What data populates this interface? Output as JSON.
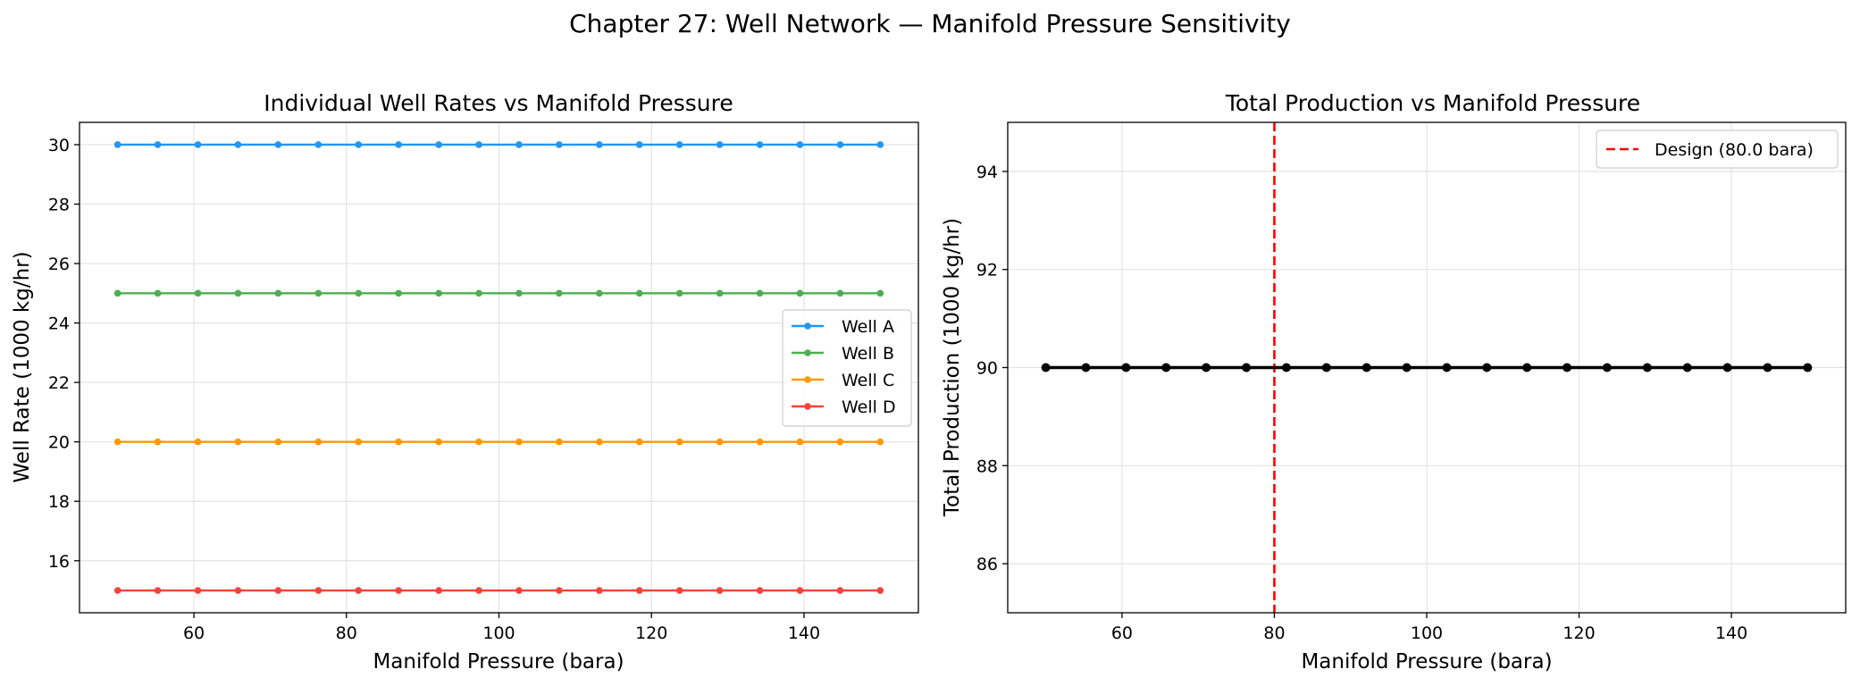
{
  "figure": {
    "suptitle": "Chapter 27: Well Network — Manifold Pressure Sensitivity"
  },
  "chart_data": [
    {
      "type": "line",
      "title": "Individual Well Rates vs Manifold Pressure",
      "xlabel": "Manifold Pressure (bara)",
      "ylabel": "Well Rate (1000 kg/hr)",
      "xlim": [
        45,
        155
      ],
      "ylim": [
        14.25,
        30.75
      ],
      "xticks": [
        60,
        80,
        100,
        120,
        140
      ],
      "yticks": [
        16,
        18,
        20,
        22,
        24,
        26,
        28,
        30
      ],
      "grid": true,
      "legend": "center-right",
      "x": [
        50,
        55.26,
        60.53,
        65.79,
        71.05,
        76.32,
        81.58,
        86.84,
        92.11,
        97.37,
        102.63,
        107.89,
        113.16,
        118.42,
        123.68,
        128.95,
        134.21,
        139.47,
        144.74,
        150
      ],
      "series": [
        {
          "name": "Well A",
          "color": "#2196f3",
          "values": [
            30,
            30,
            30,
            30,
            30,
            30,
            30,
            30,
            30,
            30,
            30,
            30,
            30,
            30,
            30,
            30,
            30,
            30,
            30,
            30
          ]
        },
        {
          "name": "Well B",
          "color": "#4caf50",
          "values": [
            25,
            25,
            25,
            25,
            25,
            25,
            25,
            25,
            25,
            25,
            25,
            25,
            25,
            25,
            25,
            25,
            25,
            25,
            25,
            25
          ]
        },
        {
          "name": "Well C",
          "color": "#ff9800",
          "values": [
            20,
            20,
            20,
            20,
            20,
            20,
            20,
            20,
            20,
            20,
            20,
            20,
            20,
            20,
            20,
            20,
            20,
            20,
            20,
            20
          ]
        },
        {
          "name": "Well D",
          "color": "#f44336",
          "values": [
            15,
            15,
            15,
            15,
            15,
            15,
            15,
            15,
            15,
            15,
            15,
            15,
            15,
            15,
            15,
            15,
            15,
            15,
            15,
            15
          ]
        }
      ]
    },
    {
      "type": "line",
      "title": "Total Production vs Manifold Pressure",
      "xlabel": "Manifold Pressure (bara)",
      "ylabel": "Total Production (1000 kg/hr)",
      "xlim": [
        45,
        155
      ],
      "ylim": [
        85,
        95
      ],
      "xticks": [
        60,
        80,
        100,
        120,
        140
      ],
      "yticks": [
        86,
        88,
        90,
        92,
        94
      ],
      "grid": true,
      "legend": "top-right",
      "x": [
        50,
        55.26,
        60.53,
        65.79,
        71.05,
        76.32,
        81.58,
        86.84,
        92.11,
        97.37,
        102.63,
        107.89,
        113.16,
        118.42,
        123.68,
        128.95,
        134.21,
        139.47,
        144.74,
        150
      ],
      "series": [
        {
          "name": "",
          "color": "#000000",
          "values": [
            90,
            90,
            90,
            90,
            90,
            90,
            90,
            90,
            90,
            90,
            90,
            90,
            90,
            90,
            90,
            90,
            90,
            90,
            90,
            90
          ]
        }
      ],
      "vline": {
        "x": 80.0,
        "label": "Design (80.0 bara)",
        "color": "#ff0000",
        "style": "dashed"
      }
    }
  ]
}
